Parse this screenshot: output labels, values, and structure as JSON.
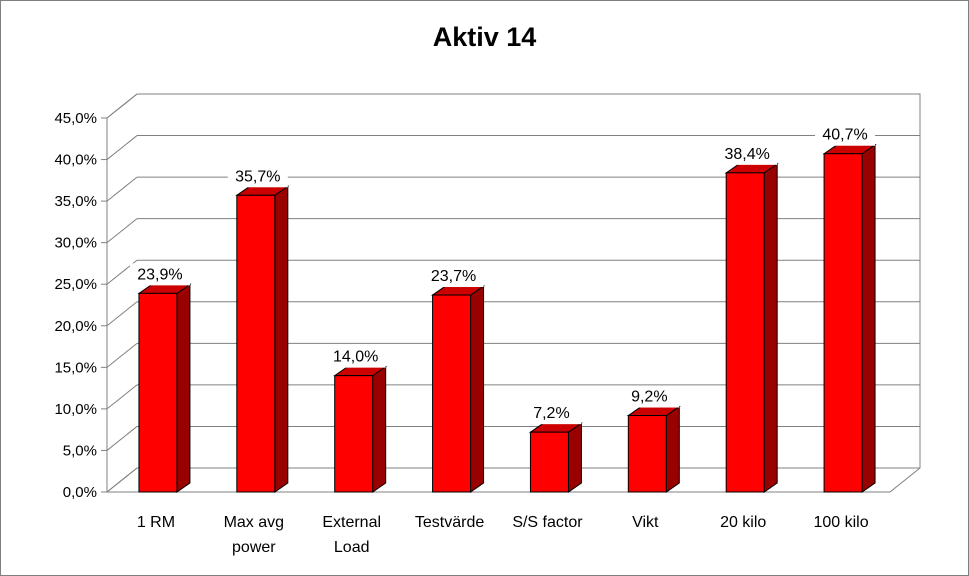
{
  "chart_data": {
    "type": "bar",
    "title": "Aktiv 14",
    "categories": [
      [
        "1 RM"
      ],
      [
        "Max avg",
        "power"
      ],
      [
        "External",
        "Load"
      ],
      [
        "Testvärde"
      ],
      [
        "S/S factor"
      ],
      [
        "Vikt"
      ],
      [
        "20 kilo"
      ],
      [
        "100 kilo"
      ]
    ],
    "values": [
      23.9,
      35.7,
      14.0,
      23.7,
      7.2,
      9.2,
      38.4,
      40.7
    ],
    "data_labels": [
      "23,9%",
      "35,7%",
      "14,0%",
      "23,7%",
      "7,2%",
      "9,2%",
      "38,4%",
      "40,7%"
    ],
    "y_ticks": [
      "0,0%",
      "5,0%",
      "10,0%",
      "15,0%",
      "20,0%",
      "25,0%",
      "30,0%",
      "35,0%",
      "40,0%",
      "45,0%"
    ],
    "ylim": [
      0,
      45
    ],
    "ystep": 5,
    "grid": true,
    "three_d": true,
    "bar_color": "#ff0000",
    "bar_side_color": "#990000",
    "bar_top_color": "#cc0000"
  }
}
